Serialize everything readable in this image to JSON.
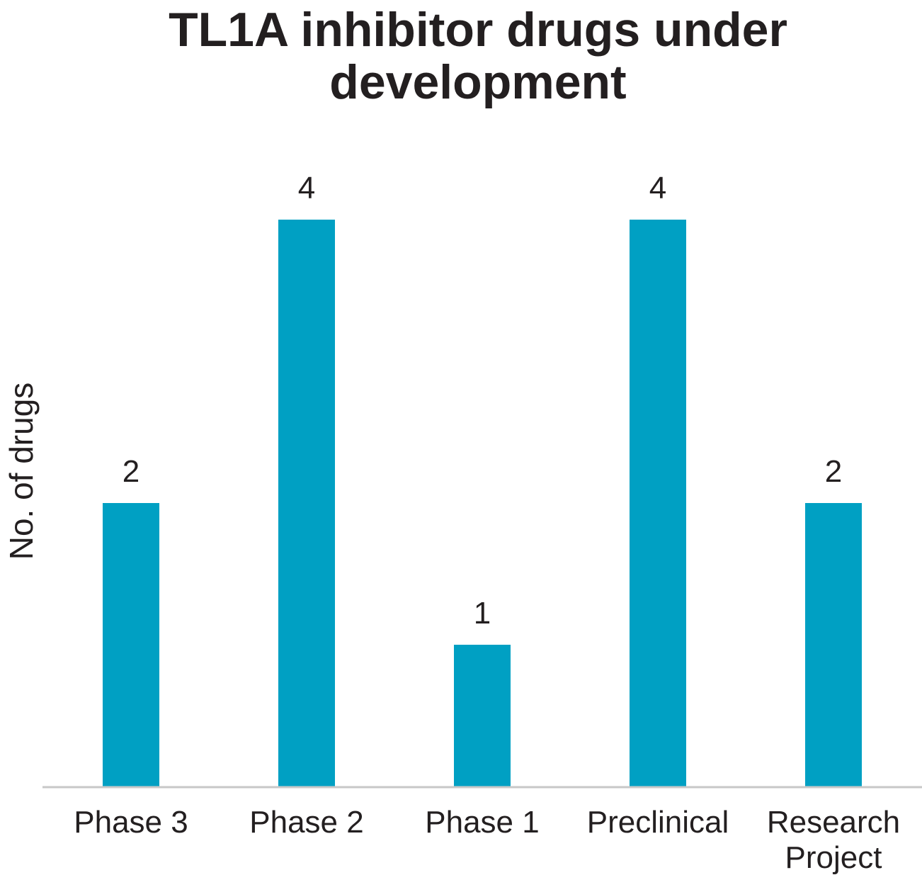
{
  "chart_data": {
    "type": "bar",
    "title": "TL1A inhibitor drugs under development",
    "title_lines": [
      "TL1A inhibitor drugs under",
      "development"
    ],
    "categories": [
      [
        "Phase 3"
      ],
      [
        "Phase 2"
      ],
      [
        "Phase 1"
      ],
      [
        "Preclinical"
      ],
      [
        "Research",
        "Project"
      ]
    ],
    "values": [
      2,
      4,
      1,
      4,
      2
    ],
    "data_labels": [
      "2",
      "4",
      "1",
      "4",
      "2"
    ],
    "xlabel": "",
    "ylabel": "No. of drugs",
    "ylim": [
      0,
      4
    ],
    "grid": false,
    "bar_color": "#00a0c3",
    "axis_color": "#c8c8c8"
  }
}
